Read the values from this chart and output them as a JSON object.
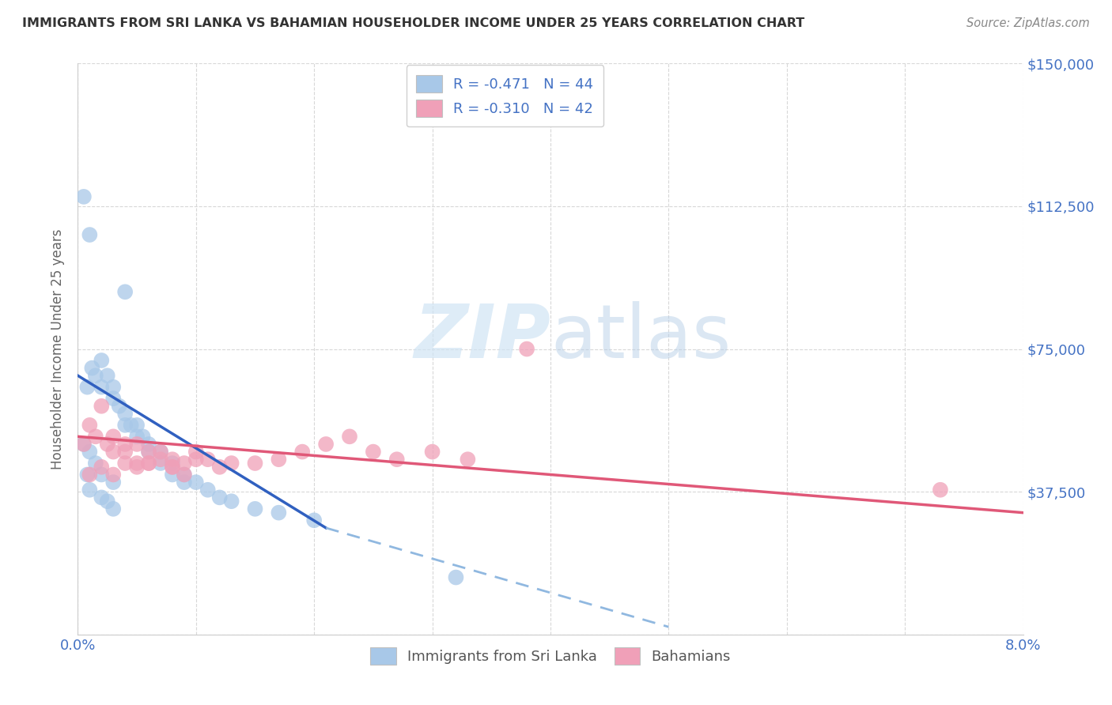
{
  "title": "IMMIGRANTS FROM SRI LANKA VS BAHAMIAN HOUSEHOLDER INCOME UNDER 25 YEARS CORRELATION CHART",
  "source": "Source: ZipAtlas.com",
  "ylabel": "Householder Income Under 25 years",
  "xmin": 0.0,
  "xmax": 0.08,
  "ymin": 0,
  "ymax": 150000,
  "yticks": [
    0,
    37500,
    75000,
    112500,
    150000
  ],
  "ytick_labels": [
    "",
    "$37,500",
    "$75,000",
    "$112,500",
    "$150,000"
  ],
  "xticks": [
    0.0,
    0.01,
    0.02,
    0.03,
    0.04,
    0.05,
    0.06,
    0.07,
    0.08
  ],
  "legend_r1": "R = -0.471",
  "legend_n1": "N = 44",
  "legend_r2": "R = -0.310",
  "legend_n2": "N = 42",
  "color_blue": "#a8c8e8",
  "color_pink": "#f0a0b8",
  "trend_blue": "#3060c0",
  "trend_pink": "#e05878",
  "trend_dashed": "#90b8e0",
  "watermark_zip": "ZIP",
  "watermark_atlas": "atlas",
  "legend_label_1": "Immigrants from Sri Lanka",
  "legend_label_2": "Bahamians",
  "sl_x": [
    0.0008,
    0.0012,
    0.0015,
    0.002,
    0.002,
    0.0025,
    0.003,
    0.003,
    0.0035,
    0.004,
    0.004,
    0.0045,
    0.005,
    0.005,
    0.0055,
    0.006,
    0.006,
    0.007,
    0.007,
    0.008,
    0.008,
    0.009,
    0.009,
    0.01,
    0.011,
    0.012,
    0.013,
    0.015,
    0.017,
    0.02,
    0.0005,
    0.001,
    0.0015,
    0.002,
    0.003,
    0.0008,
    0.001,
    0.002,
    0.0025,
    0.003,
    0.0005,
    0.001,
    0.032,
    0.004
  ],
  "sl_y": [
    65000,
    70000,
    68000,
    72000,
    65000,
    68000,
    65000,
    62000,
    60000,
    58000,
    55000,
    55000,
    55000,
    52000,
    52000,
    50000,
    48000,
    48000,
    45000,
    45000,
    42000,
    42000,
    40000,
    40000,
    38000,
    36000,
    35000,
    33000,
    32000,
    30000,
    50000,
    48000,
    45000,
    42000,
    40000,
    42000,
    38000,
    36000,
    35000,
    33000,
    115000,
    105000,
    15000,
    90000
  ],
  "bah_x": [
    0.0005,
    0.001,
    0.0015,
    0.002,
    0.0025,
    0.003,
    0.003,
    0.004,
    0.004,
    0.005,
    0.005,
    0.006,
    0.006,
    0.007,
    0.008,
    0.008,
    0.009,
    0.01,
    0.011,
    0.012,
    0.013,
    0.015,
    0.017,
    0.019,
    0.021,
    0.023,
    0.025,
    0.027,
    0.03,
    0.033,
    0.001,
    0.002,
    0.003,
    0.004,
    0.005,
    0.006,
    0.007,
    0.008,
    0.009,
    0.01,
    0.073,
    0.038
  ],
  "bah_y": [
    50000,
    55000,
    52000,
    60000,
    50000,
    52000,
    48000,
    50000,
    48000,
    50000,
    45000,
    48000,
    45000,
    48000,
    46000,
    44000,
    45000,
    48000,
    46000,
    44000,
    45000,
    45000,
    46000,
    48000,
    50000,
    52000,
    48000,
    46000,
    48000,
    46000,
    42000,
    44000,
    42000,
    45000,
    44000,
    45000,
    46000,
    44000,
    42000,
    46000,
    38000,
    75000
  ],
  "trend_blue_x0": 0.0,
  "trend_blue_y0": 68000,
  "trend_blue_x1": 0.021,
  "trend_blue_y1": 28000,
  "trend_dashed_x0": 0.021,
  "trend_dashed_y0": 28000,
  "trend_dashed_x1": 0.05,
  "trend_dashed_y1": 2000,
  "trend_pink_x0": 0.0,
  "trend_pink_y0": 52000,
  "trend_pink_x1": 0.08,
  "trend_pink_y1": 32000
}
